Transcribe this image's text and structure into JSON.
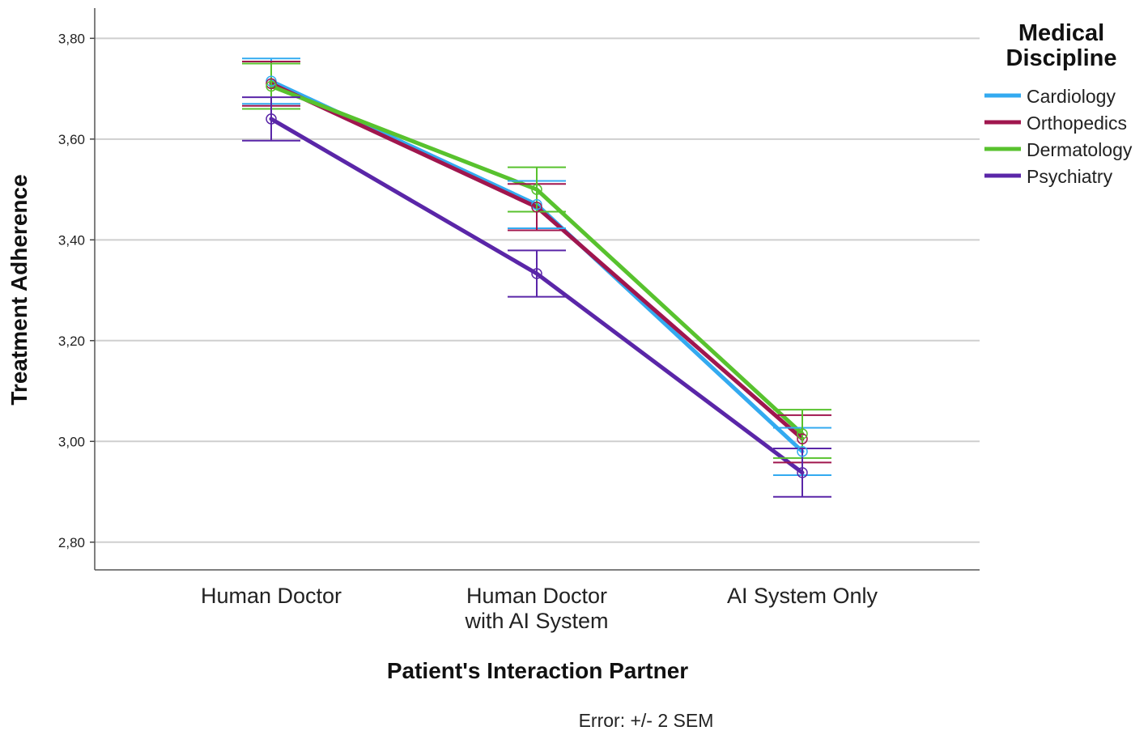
{
  "chart_data": {
    "type": "line",
    "xlabel": "Patient's Interaction Partner",
    "ylabel": "Treatment Adherence",
    "categories": [
      [
        "Human Doctor"
      ],
      [
        "Human Doctor",
        "with AI System"
      ],
      [
        "AI System Only"
      ]
    ],
    "ylim": [
      2.745,
      3.86
    ],
    "yticks": [
      "2,80",
      "3,00",
      "3,20",
      "3,40",
      "3,60",
      "3,80"
    ],
    "ytick_values": [
      2.8,
      3.0,
      3.2,
      3.4,
      3.6,
      3.8
    ],
    "grid": true,
    "legend": {
      "title_lines": [
        "Medical",
        "Discipline"
      ],
      "placement": "right"
    },
    "error_note": "Error: +/- 2 SEM",
    "series": [
      {
        "name": "Cardiology",
        "color": "#33aaf0",
        "values": [
          3.715,
          3.47,
          2.98
        ],
        "err": [
          0.045,
          0.047,
          0.047
        ]
      },
      {
        "name": "Orthopedics",
        "color": "#a0164e",
        "values": [
          3.71,
          3.465,
          3.005
        ],
        "err": [
          0.044,
          0.046,
          0.047
        ]
      },
      {
        "name": "Dermatology",
        "color": "#58c22e",
        "values": [
          3.705,
          3.5,
          3.015
        ],
        "err": [
          0.045,
          0.044,
          0.048
        ]
      },
      {
        "name": "Psychiatry",
        "color": "#5a26a8",
        "values": [
          3.64,
          3.333,
          2.938
        ],
        "err": [
          0.043,
          0.046,
          0.048
        ]
      }
    ]
  }
}
